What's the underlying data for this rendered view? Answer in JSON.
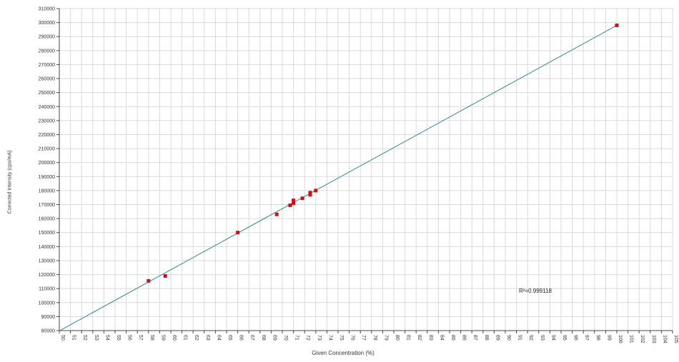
{
  "chart_data": {
    "type": "scatter",
    "title": "",
    "xlabel": "Given Concentration (%)",
    "ylabel": "Corrected Intensity (cps/mA)",
    "xlim": [
      50,
      105
    ],
    "ylim": [
      80000,
      310000
    ],
    "x_tick_step": 1,
    "y_tick_step": 10000,
    "grid": true,
    "annotation": "R²=0.999118",
    "points": [
      {
        "x": 58.0,
        "y": 115500
      },
      {
        "x": 59.5,
        "y": 119000
      },
      {
        "x": 66.0,
        "y": 150000
      },
      {
        "x": 69.5,
        "y": 163000
      },
      {
        "x": 70.7,
        "y": 169500
      },
      {
        "x": 71.0,
        "y": 171000
      },
      {
        "x": 71.0,
        "y": 173000
      },
      {
        "x": 71.8,
        "y": 174500
      },
      {
        "x": 72.5,
        "y": 177000
      },
      {
        "x": 72.5,
        "y": 178500
      },
      {
        "x": 73.0,
        "y": 180000
      },
      {
        "x": 100.0,
        "y": 298000
      }
    ],
    "fit_line": {
      "x": [
        50,
        100
      ],
      "y": [
        79800,
        298000
      ]
    },
    "colors": {
      "points": "#cc1111",
      "fit_line": "#2f8a8a",
      "grid": "#d9d9d9",
      "axis": "#444444"
    }
  }
}
